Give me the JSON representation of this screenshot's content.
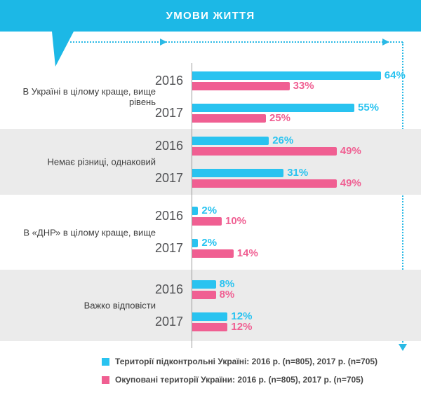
{
  "banner": {
    "title": "УМОВИ ЖИТТЯ"
  },
  "colors": {
    "banner": "#1cb8e6",
    "bar_controlled": "#29c3f0",
    "bar_occupied": "#f05f92",
    "band_shade": "#ebebeb",
    "axis": "#9b9b9b",
    "dotted_arrow": "#29b9e5"
  },
  "chart_data": {
    "type": "bar",
    "orientation": "horizontal",
    "title": "УМОВИ ЖИТТЯ",
    "unit": "%",
    "categories": [
      "В Україні в цілому краще, вище рівень",
      "Немає різниці, однаковий",
      "В «ДНР» в цілому краще, вище",
      "Важко відповісти"
    ],
    "years": [
      "2016",
      "2017"
    ],
    "series": [
      {
        "name": "Території підконтрольні Україні",
        "color": "#29c3f0",
        "values_2016": [
          64,
          26,
          2,
          8
        ],
        "values_2017": [
          55,
          31,
          2,
          12
        ]
      },
      {
        "name": "Окуповані території України",
        "color": "#f05f92",
        "values_2016": [
          33,
          49,
          10,
          8
        ],
        "values_2017": [
          25,
          49,
          14,
          12
        ]
      }
    ],
    "xlim": [
      0,
      70
    ],
    "grid": false,
    "legend_position": "bottom"
  },
  "groups": [
    {
      "label": "В Україні в цілому краще, вище рівень",
      "rows": [
        {
          "year": "2016",
          "ua": "64%",
          "occ": "33%"
        },
        {
          "year": "2017",
          "ua": "55%",
          "occ": "25%"
        }
      ]
    },
    {
      "label": "Немає різниці, однаковий",
      "rows": [
        {
          "year": "2016",
          "ua": "26%",
          "occ": "49%"
        },
        {
          "year": "2017",
          "ua": "31%",
          "occ": "49%"
        }
      ]
    },
    {
      "label": "В «ДНР» в цілому краще, вище",
      "rows": [
        {
          "year": "2016",
          "ua": "2%",
          "occ": "10%"
        },
        {
          "year": "2017",
          "ua": "2%",
          "occ": "14%"
        }
      ]
    },
    {
      "label": "Важко відповісти",
      "rows": [
        {
          "year": "2016",
          "ua": "8%",
          "occ": "8%"
        },
        {
          "year": "2017",
          "ua": "12%",
          "occ": "12%"
        }
      ]
    }
  ],
  "legend": [
    {
      "label": "Території підконтрольні Україні:  2016 р. (n=805), 2017 р. (n=705)",
      "color": "#29c3f0"
    },
    {
      "label": "Окуповані території України: 2016 р. (n=805), 2017 р. (n=705)",
      "color": "#f05f92"
    }
  ]
}
